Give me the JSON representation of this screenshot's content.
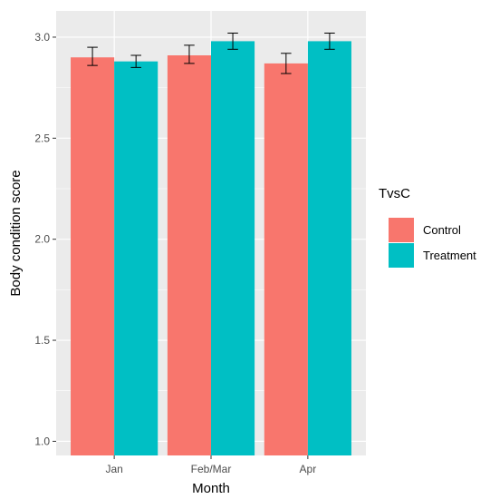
{
  "chart_data": {
    "type": "bar",
    "title": "",
    "xlabel": "Month",
    "ylabel": "Body condition score",
    "categories": [
      "Jan",
      "Feb/Mar",
      "Apr"
    ],
    "series": [
      {
        "name": "Control",
        "values": [
          2.9,
          2.91,
          2.87
        ],
        "err_low": [
          2.86,
          2.87,
          2.82
        ],
        "err_high": [
          2.95,
          2.96,
          2.92
        ],
        "color": "#F8766D"
      },
      {
        "name": "Treatment",
        "values": [
          2.88,
          2.98,
          2.98
        ],
        "err_low": [
          2.85,
          2.94,
          2.94
        ],
        "err_high": [
          2.91,
          3.02,
          3.02
        ],
        "color": "#00BFC4"
      }
    ],
    "ylim": [
      0.93,
      3.13
    ],
    "yticks": [
      1.0,
      1.5,
      2.0,
      2.5,
      3.0
    ],
    "ytick_labels": [
      "1.0",
      "1.5",
      "2.0",
      "2.5",
      "3.0"
    ],
    "grid": true,
    "legend": {
      "title": "TvsC",
      "position": "right"
    },
    "panel_background": "#EBEBEB"
  }
}
